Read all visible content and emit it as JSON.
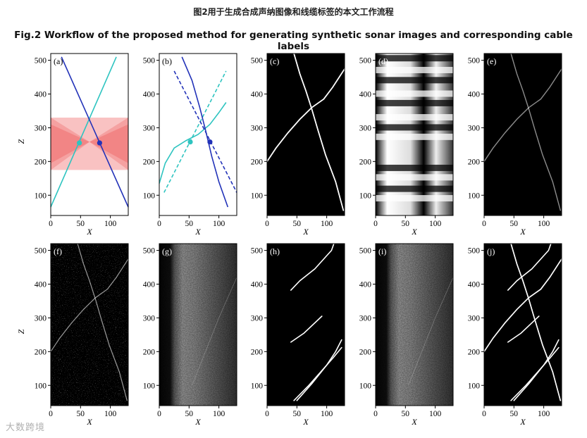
{
  "page": {
    "title_cn": "图2用于生成合成声纳图像和线缆标签的本文工作流程",
    "title_en": "Fig.2 Workflow of the proposed method for generating synthetic sonar images and corresponding cable labels",
    "watermark": "大数跨境"
  },
  "colors": {
    "teal": "#2ec4c0",
    "blue": "#2232b8",
    "pink_light": "#f9c2c2",
    "pink_dark": "#f28080"
  },
  "chart_data": {
    "type": "figure-grid",
    "x_axis": {
      "label": "X",
      "range": [
        0,
        130
      ],
      "ticks": [
        0,
        50,
        100
      ]
    },
    "z_axis": {
      "label": "Z",
      "range": [
        40,
        520
      ],
      "ticks": [
        100,
        200,
        300,
        400,
        500
      ]
    },
    "panels": [
      {
        "id": "a",
        "label": "(a)",
        "kind": "line-plot",
        "lines": [
          {
            "color": "teal",
            "style": "solid",
            "points": [
              [
                0,
                65
              ],
              [
                110,
                510
              ]
            ]
          },
          {
            "color": "blue",
            "style": "solid",
            "points": [
              [
                18,
                510
              ],
              [
                130,
                65
              ]
            ]
          }
        ],
        "markers": [
          {
            "color": "teal",
            "point": [
              48,
              255
            ]
          },
          {
            "color": "blue",
            "point": [
              82,
              255
            ]
          }
        ],
        "bands": [
          {
            "color": "pink_light",
            "polygon": [
              [
                0,
                330
              ],
              [
                130,
                330
              ],
              [
                130,
                175
              ],
              [
                0,
                175
              ]
            ]
          }
        ]
      },
      {
        "id": "b",
        "label": "(b)",
        "kind": "line-plot",
        "lines": [
          {
            "color": "teal",
            "style": "solid",
            "points": [
              [
                0,
                135
              ],
              [
                10,
                195
              ],
              [
                25,
                240
              ],
              [
                45,
                262
              ],
              [
                65,
                280
              ],
              [
                85,
                310
              ],
              [
                100,
                345
              ],
              [
                112,
                375
              ]
            ]
          },
          {
            "color": "teal",
            "style": "dashed",
            "points": [
              [
                8,
                108
              ],
              [
                112,
                468
              ]
            ]
          },
          {
            "color": "blue",
            "style": "solid",
            "points": [
              [
                38,
                510
              ],
              [
                55,
                440
              ],
              [
                68,
                360
              ],
              [
                78,
                290
              ],
              [
                88,
                215
              ],
              [
                100,
                140
              ],
              [
                115,
                65
              ]
            ]
          },
          {
            "color": "blue",
            "style": "dashed",
            "points": [
              [
                25,
                468
              ],
              [
                130,
                108
              ]
            ]
          }
        ],
        "markers": [
          {
            "color": "teal",
            "point": [
              52,
              258
            ]
          },
          {
            "color": "blue",
            "point": [
              85,
              258
            ]
          }
        ]
      },
      {
        "id": "c",
        "label": "(c)",
        "kind": "image"
      },
      {
        "id": "d",
        "label": "(d)",
        "kind": "image"
      },
      {
        "id": "e",
        "label": "(e)",
        "kind": "image"
      },
      {
        "id": "f",
        "label": "(f)",
        "kind": "image"
      },
      {
        "id": "g",
        "label": "(g)",
        "kind": "image"
      },
      {
        "id": "h",
        "label": "(h)",
        "kind": "image"
      },
      {
        "id": "i",
        "label": "(i)",
        "kind": "image"
      },
      {
        "id": "j",
        "label": "(j)",
        "kind": "image"
      }
    ]
  }
}
